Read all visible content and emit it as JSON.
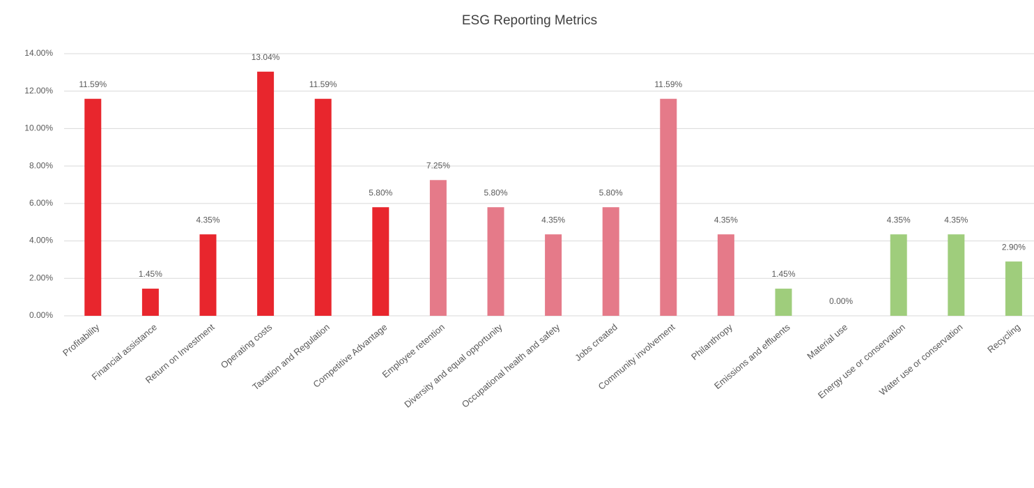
{
  "chart_data": {
    "type": "bar",
    "title": "ESG Reporting Metrics",
    "categories": [
      "Profitability",
      "Financial assistance",
      "Return on Investment",
      "Operating costs",
      "Taxation and Regulation",
      "Competitive Advantage",
      "Employee retention",
      "Diversity and equal opportunity",
      "Occupational health and safety",
      "Jobs created",
      "Community involvement",
      "Philanthropy",
      "Emissions and effluents",
      "Material use",
      "Energy use or conservation",
      "Water use or conservation",
      "Recycling"
    ],
    "values": [
      11.59,
      1.45,
      4.35,
      13.04,
      11.59,
      5.8,
      7.25,
      5.8,
      4.35,
      5.8,
      11.59,
      4.35,
      1.45,
      0,
      4.35,
      4.35,
      2.9
    ],
    "value_labels": [
      "11.59%",
      "1.45%",
      "4.35%",
      "13.04%",
      "11.59%",
      "5.80%",
      "7.25%",
      "5.80%",
      "4.35%",
      "5.80%",
      "11.59%",
      "4.35%",
      "1.45%",
      "0.00%",
      "4.35%",
      "4.35%",
      "2.90%"
    ],
    "colors": [
      "#e8262d",
      "#e8262d",
      "#e8262d",
      "#e8262d",
      "#e8262d",
      "#e8262d",
      "#e57a89",
      "#e57a89",
      "#e57a89",
      "#e57a89",
      "#e57a89",
      "#e57a89",
      "#9fcd7c",
      "#9fcd7c",
      "#9fcd7c",
      "#9fcd7c",
      "#9fcd7c"
    ],
    "ylim": [
      0,
      14
    ],
    "yticks": [
      {
        "value": 0,
        "label": "0.00%"
      },
      {
        "value": 2,
        "label": "2.00%"
      },
      {
        "value": 4,
        "label": "4.00%"
      },
      {
        "value": 6,
        "label": "6.00%"
      },
      {
        "value": 8,
        "label": "8.00%"
      },
      {
        "value": 10,
        "label": "10.00%"
      },
      {
        "value": 12,
        "label": "12.00%"
      },
      {
        "value": 14,
        "label": "14.00%"
      }
    ],
    "grid": true
  }
}
